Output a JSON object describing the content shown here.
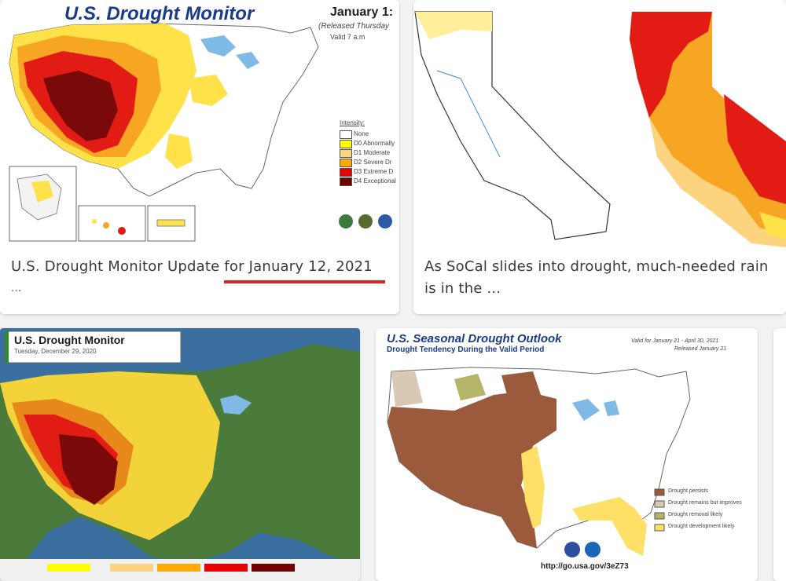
{
  "results": [
    {
      "caption_line1": "U.S. Drought Monitor Update for January 12, 2021",
      "caption_line2": "...",
      "map_title": "U.S. Drought Monitor",
      "map_date": "January 1:",
      "map_released": "(Released Thursday",
      "map_valid": "Valid 7 a.m",
      "legend_heading": "Intensity:",
      "legend": [
        "None",
        "D0 Abnormally",
        "D1 Moderate",
        "D2 Severe Dr",
        "D3 Extreme D",
        "D4 Exceptional"
      ],
      "colors": [
        "#ffffff",
        "#ffff00",
        "#fcd37f",
        "#ffaa00",
        "#e60000",
        "#730000"
      ]
    },
    {
      "caption_line1": "As SoCal slides into drought, much-needed rain",
      "caption_line2": "is in the ..."
    },
    {
      "map_title": "U.S. Drought Monitor",
      "map_date": "Tuesday, December 29, 2020"
    },
    {
      "map_title": "U.S. Seasonal Drought Outlook",
      "map_subtitle": "Drought Tendency During the Valid Period",
      "valid": "Valid for January 21 - April 30, 2021",
      "released": "Released January 21",
      "legend": [
        "Drought persists",
        "Drought remains but improves",
        "Drought removal likely",
        "Drought development likely"
      ],
      "legend_colors": [
        "#9c5a3c",
        "#d9c8b4",
        "#b5b56a",
        "#ffe066"
      ],
      "url": "http://go.usa.gov/3eZ73"
    }
  ]
}
